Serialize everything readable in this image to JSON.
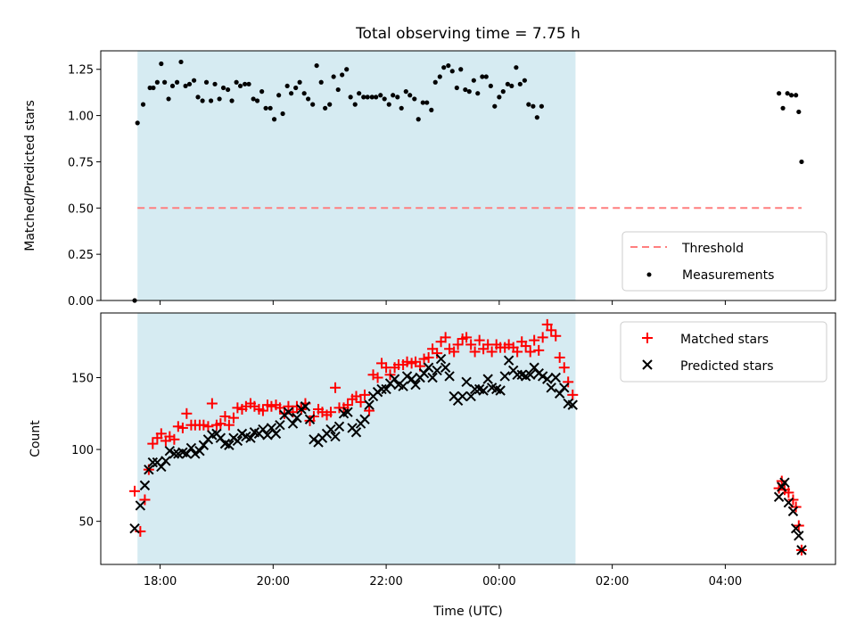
{
  "figure": {
    "title": "Total observing time = 7.75 h",
    "xlabel": "Time (UTC)",
    "x_tick_labels": [
      "18:00",
      "20:00",
      "22:00",
      "00:00",
      "02:00",
      "04:00"
    ],
    "shade_color": "#add8e6"
  },
  "chart_data": [
    {
      "type": "scatter",
      "ylabel": "Matched/Predicted stars",
      "xunit": "hours since 00:00 UTC of first night (values >24 are next day)",
      "xlim": [
        16.95,
        29.95
      ],
      "ylim": [
        0.0,
        1.35
      ],
      "yticks": [
        0.0,
        0.25,
        0.5,
        0.75,
        1.0,
        1.25
      ],
      "ytick_labels": [
        "0.00",
        "0.25",
        "0.50",
        "0.75",
        "1.00",
        "1.25"
      ],
      "shaded_span": [
        17.6,
        25.35
      ],
      "threshold": {
        "name": "Threshold",
        "value": 0.5,
        "x": [
          17.6,
          29.35
        ],
        "color": "#ff7f7f"
      },
      "legend": [
        {
          "name": "Threshold",
          "marker": "dash",
          "color": "#ff7f7f"
        },
        {
          "name": "Measurements",
          "marker": "dot",
          "color": "#000000"
        }
      ],
      "series": [
        {
          "name": "Measurements",
          "color": "#000000",
          "x": [
            17.55,
            17.6,
            17.7,
            17.82,
            17.88,
            17.95,
            18.02,
            18.08,
            18.15,
            18.22,
            18.3,
            18.37,
            18.45,
            18.52,
            18.6,
            18.67,
            18.75,
            18.82,
            18.9,
            18.97,
            19.05,
            19.12,
            19.2,
            19.27,
            19.35,
            19.42,
            19.5,
            19.57,
            19.65,
            19.72,
            19.8,
            19.87,
            19.95,
            20.02,
            20.1,
            20.17,
            20.25,
            20.32,
            20.4,
            20.47,
            20.55,
            20.62,
            20.7,
            20.77,
            20.85,
            20.92,
            21.0,
            21.07,
            21.15,
            21.22,
            21.3,
            21.37,
            21.45,
            21.52,
            21.6,
            21.67,
            21.75,
            21.82,
            21.9,
            21.97,
            22.05,
            22.12,
            22.2,
            22.27,
            22.35,
            22.42,
            22.5,
            22.57,
            22.65,
            22.72,
            22.8,
            22.87,
            22.95,
            23.02,
            23.1,
            23.17,
            23.25,
            23.32,
            23.4,
            23.47,
            23.55,
            23.62,
            23.7,
            23.77,
            23.85,
            23.92,
            24.0,
            24.07,
            24.15,
            24.22,
            24.3,
            24.37,
            24.45,
            24.52,
            24.6,
            24.67,
            24.75,
            24.82,
            24.9,
            24.97,
            25.05,
            25.12,
            25.2,
            25.27,
            25.35,
            28.95,
            29.02,
            29.1,
            29.17,
            29.25,
            29.3,
            29.35
          ],
          "y": [
            0.0,
            0.96,
            1.06,
            1.15,
            1.15,
            1.18,
            1.28,
            1.18,
            1.09,
            1.16,
            1.18,
            1.29,
            1.16,
            1.17,
            1.19,
            1.1,
            1.08,
            1.18,
            1.08,
            1.17,
            1.09,
            1.15,
            1.14,
            1.08,
            1.18,
            1.16,
            1.17,
            1.17,
            1.09,
            1.08,
            1.13,
            1.04,
            1.04,
            0.98,
            1.11,
            1.01,
            1.16,
            1.12,
            1.15,
            1.18,
            1.12,
            1.09,
            1.06,
            1.27,
            1.18,
            1.04,
            1.06,
            1.21,
            1.14,
            1.22,
            1.25,
            1.1,
            1.06,
            1.12,
            1.1,
            1.1,
            1.1,
            1.1,
            1.11,
            1.09,
            1.06,
            1.11,
            1.1,
            1.04,
            1.13,
            1.11,
            1.09,
            0.98,
            1.07,
            1.07,
            1.03,
            1.18,
            1.21,
            1.26,
            1.27,
            1.24,
            1.15,
            1.25,
            1.14,
            1.13,
            1.19,
            1.12,
            1.21,
            1.21,
            1.16,
            1.05,
            1.1,
            1.13,
            1.17,
            1.16,
            1.26,
            1.17,
            1.19,
            1.06,
            1.05,
            0.99,
            1.05,
            null,
            null,
            null,
            null,
            null,
            null,
            null,
            null,
            1.12,
            1.04,
            1.12,
            1.11,
            1.11,
            1.02,
            0.75
          ]
        }
      ]
    },
    {
      "type": "scatter",
      "ylabel": "Count",
      "xlim": [
        16.95,
        29.95
      ],
      "ylim": [
        20,
        195
      ],
      "yticks": [
        50,
        100,
        150
      ],
      "ytick_labels": [
        "50",
        "100",
        "150"
      ],
      "shaded_span": [
        17.6,
        25.35
      ],
      "legend": [
        {
          "name": "Matched stars",
          "marker": "plus",
          "color": "#ff0000"
        },
        {
          "name": "Predicted stars",
          "marker": "x",
          "color": "#000000"
        }
      ],
      "series": [
        {
          "name": "Matched stars",
          "marker": "plus",
          "color": "#ff0000",
          "x": [
            17.55,
            17.65,
            17.73,
            17.8,
            17.87,
            17.95,
            18.02,
            18.1,
            18.17,
            18.25,
            18.32,
            18.4,
            18.47,
            18.55,
            18.62,
            18.7,
            18.77,
            18.85,
            18.92,
            19.0,
            19.07,
            19.15,
            19.22,
            19.3,
            19.37,
            19.45,
            19.52,
            19.6,
            19.67,
            19.75,
            19.82,
            19.9,
            19.97,
            20.05,
            20.12,
            20.2,
            20.27,
            20.35,
            20.42,
            20.5,
            20.57,
            20.65,
            20.72,
            20.8,
            20.87,
            20.95,
            21.02,
            21.1,
            21.17,
            21.25,
            21.32,
            21.4,
            21.47,
            21.55,
            21.62,
            21.7,
            21.77,
            21.85,
            21.92,
            22.0,
            22.07,
            22.15,
            22.22,
            22.3,
            22.37,
            22.45,
            22.52,
            22.6,
            22.67,
            22.75,
            22.82,
            22.9,
            22.97,
            23.05,
            23.12,
            23.2,
            23.27,
            23.35,
            23.42,
            23.5,
            23.57,
            23.65,
            23.72,
            23.8,
            23.87,
            23.95,
            24.02,
            24.1,
            24.17,
            24.25,
            24.32,
            24.4,
            24.47,
            24.55,
            24.62,
            24.7,
            24.77,
            24.85,
            24.92,
            25.0,
            25.07,
            25.15,
            25.22,
            25.3,
            28.95,
            29.0,
            29.05,
            29.12,
            29.2,
            29.25,
            29.3,
            29.35
          ],
          "y": [
            71,
            43,
            65,
            86,
            104,
            108,
            111,
            106,
            109,
            107,
            116,
            115,
            125,
            117,
            117,
            117,
            117,
            116,
            132,
            117,
            118,
            123,
            117,
            122,
            129,
            128,
            130,
            132,
            130,
            128,
            127,
            131,
            130,
            131,
            129,
            125,
            130,
            126,
            130,
            128,
            132,
            120,
            123,
            128,
            126,
            124,
            126,
            143,
            129,
            129,
            131,
            135,
            137,
            133,
            138,
            127,
            152,
            150,
            160,
            157,
            152,
            157,
            159,
            159,
            161,
            160,
            161,
            158,
            163,
            164,
            170,
            167,
            175,
            178,
            170,
            168,
            173,
            177,
            178,
            173,
            168,
            176,
            170,
            173,
            168,
            173,
            171,
            171,
            173,
            171,
            168,
            175,
            172,
            168,
            176,
            169,
            178,
            187,
            183,
            179,
            164,
            157,
            147,
            138,
            73,
            78,
            72,
            70,
            65,
            60,
            47,
            30
          ]
        },
        {
          "name": "Predicted stars",
          "marker": "x",
          "color": "#000000",
          "x": [
            17.55,
            17.65,
            17.73,
            17.8,
            17.87,
            17.95,
            18.02,
            18.1,
            18.17,
            18.25,
            18.32,
            18.4,
            18.47,
            18.55,
            18.62,
            18.7,
            18.77,
            18.85,
            18.92,
            19.0,
            19.07,
            19.15,
            19.22,
            19.3,
            19.37,
            19.45,
            19.52,
            19.6,
            19.67,
            19.75,
            19.82,
            19.9,
            19.97,
            20.05,
            20.12,
            20.2,
            20.27,
            20.35,
            20.42,
            20.5,
            20.57,
            20.65,
            20.72,
            20.8,
            20.87,
            20.95,
            21.02,
            21.1,
            21.17,
            21.25,
            21.32,
            21.4,
            21.47,
            21.55,
            21.62,
            21.7,
            21.77,
            21.85,
            21.92,
            22.0,
            22.07,
            22.15,
            22.22,
            22.3,
            22.37,
            22.45,
            22.52,
            22.6,
            22.67,
            22.75,
            22.82,
            22.9,
            22.97,
            23.05,
            23.12,
            23.2,
            23.27,
            23.35,
            23.42,
            23.5,
            23.57,
            23.65,
            23.72,
            23.8,
            23.87,
            23.95,
            24.02,
            24.1,
            24.17,
            24.25,
            24.32,
            24.4,
            24.47,
            24.55,
            24.62,
            24.7,
            24.77,
            24.85,
            24.92,
            25.0,
            25.07,
            25.15,
            25.22,
            25.3,
            28.95,
            29.0,
            29.05,
            29.12,
            29.2,
            29.25,
            29.3,
            29.35
          ],
          "y": [
            45,
            61,
            75,
            86,
            91,
            91,
            88,
            92,
            99,
            97,
            97,
            98,
            97,
            101,
            97,
            99,
            103,
            107,
            110,
            111,
            108,
            104,
            103,
            108,
            106,
            111,
            109,
            108,
            112,
            111,
            114,
            110,
            115,
            111,
            117,
            124,
            126,
            118,
            122,
            128,
            130,
            121,
            107,
            105,
            108,
            111,
            114,
            109,
            116,
            125,
            126,
            115,
            112,
            118,
            121,
            131,
            137,
            140,
            142,
            142,
            146,
            149,
            145,
            144,
            151,
            149,
            145,
            150,
            153,
            157,
            150,
            155,
            163,
            157,
            151,
            137,
            134,
            137,
            147,
            137,
            142,
            142,
            141,
            149,
            143,
            142,
            141,
            151,
            162,
            155,
            152,
            152,
            151,
            152,
            157,
            153,
            151,
            149,
            143,
            150,
            139,
            143,
            132,
            131,
            67,
            74,
            77,
            63,
            57,
            45,
            40,
            30
          ]
        }
      ]
    }
  ]
}
